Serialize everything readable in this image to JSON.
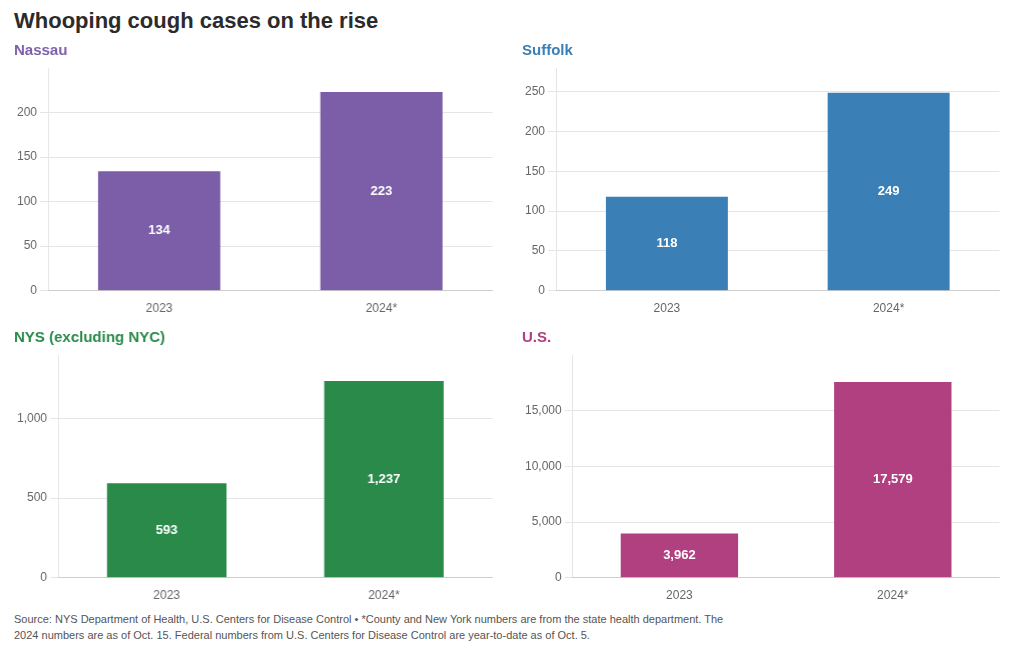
{
  "title": "Whooping cough cases on the rise",
  "annotations": [
    "Source: NYS Department of Health, U.S. Centers for Disease Control • *County and New York numbers are from the state health department. The\n2024 numbers are as of Oct. 15. Federal numbers from U.S. Centers for Disease Control are year-to-date as of Oct. 5."
  ],
  "chart_data": [
    {
      "type": "bar",
      "title": "Nassau",
      "categories": [
        "2023",
        "2024*"
      ],
      "values": [
        134,
        223
      ],
      "color": "#7b5ea7",
      "ylim": [
        0,
        250
      ],
      "yticks": [
        0,
        50,
        100,
        150,
        200
      ],
      "grid": true,
      "data_labels": true
    },
    {
      "type": "bar",
      "title": "Suffolk",
      "categories": [
        "2023",
        "2024*"
      ],
      "values": [
        118,
        249
      ],
      "color": "#3a7fb5",
      "ylim": [
        0,
        280
      ],
      "yticks": [
        0,
        50,
        100,
        150,
        200,
        250
      ],
      "grid": true,
      "data_labels": true
    },
    {
      "type": "bar",
      "title": "NYS (excluding NYC)",
      "categories": [
        "2023",
        "2024*"
      ],
      "values": [
        593,
        1237
      ],
      "value_labels": [
        "593",
        "1,237"
      ],
      "color": "#2a8a4a",
      "ylim": [
        0,
        1400
      ],
      "yticks": [
        0,
        500,
        {
          "value": 1000,
          "label": "1,000"
        }
      ],
      "grid": true,
      "data_labels": true
    },
    {
      "type": "bar",
      "title": "U.S.",
      "categories": [
        "2023",
        "2024*"
      ],
      "values": [
        3962,
        17579
      ],
      "value_labels": [
        "3,962",
        "17,579"
      ],
      "color": "#b04080",
      "ylim": [
        0,
        20000
      ],
      "yticks": [
        0,
        {
          "value": 5000,
          "label": "5,000"
        },
        {
          "value": 10000,
          "label": "10,000"
        },
        {
          "value": 15000,
          "label": "15,000"
        }
      ],
      "grid": true,
      "data_labels": true
    }
  ]
}
